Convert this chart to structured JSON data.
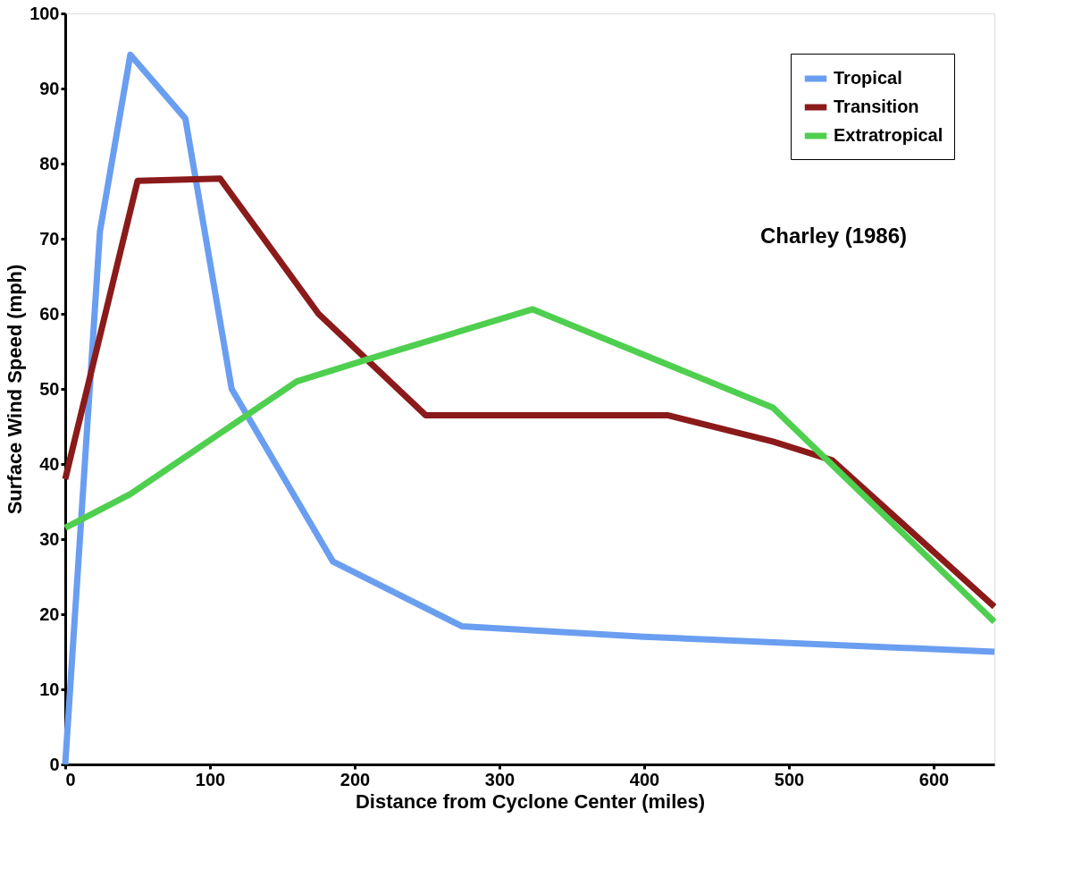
{
  "chart_data": {
    "type": "line",
    "xlabel": "Distance from Cyclone Center (miles)",
    "ylabel": "Surface Wind Speed (mph)",
    "xlim": [
      0,
      642
    ],
    "ylim": [
      0,
      100
    ],
    "xticks": [
      0,
      100,
      200,
      300,
      400,
      500,
      600
    ],
    "yticks": [
      0,
      10,
      20,
      30,
      40,
      50,
      60,
      70,
      80,
      90,
      100
    ],
    "grid": false,
    "legend": "top right",
    "marker": "none",
    "line_style": "solid",
    "annotations": [
      "Charley (1986)"
    ],
    "series": [
      {
        "name": "Tropical",
        "color": "#6a9ef0",
        "x": [
          0,
          24,
          45,
          83,
          115,
          185,
          274,
          400,
          642
        ],
        "values": [
          0,
          71,
          94.5,
          86,
          50,
          27,
          18.4,
          17,
          15
        ]
      },
      {
        "name": "Transition",
        "color": "#8b1a1a",
        "x": [
          0,
          50,
          107,
          175,
          249,
          416,
          489,
          530,
          642
        ],
        "values": [
          38,
          77.7,
          78,
          60,
          46.5,
          46.5,
          43,
          40.5,
          21
        ]
      },
      {
        "name": "Extratropical",
        "color": "#4fcf4f",
        "x": [
          0,
          45,
          160,
          210,
          323,
          489,
          642
        ],
        "values": [
          31.5,
          36,
          51,
          54,
          60.6,
          47.5,
          19
        ]
      }
    ]
  }
}
